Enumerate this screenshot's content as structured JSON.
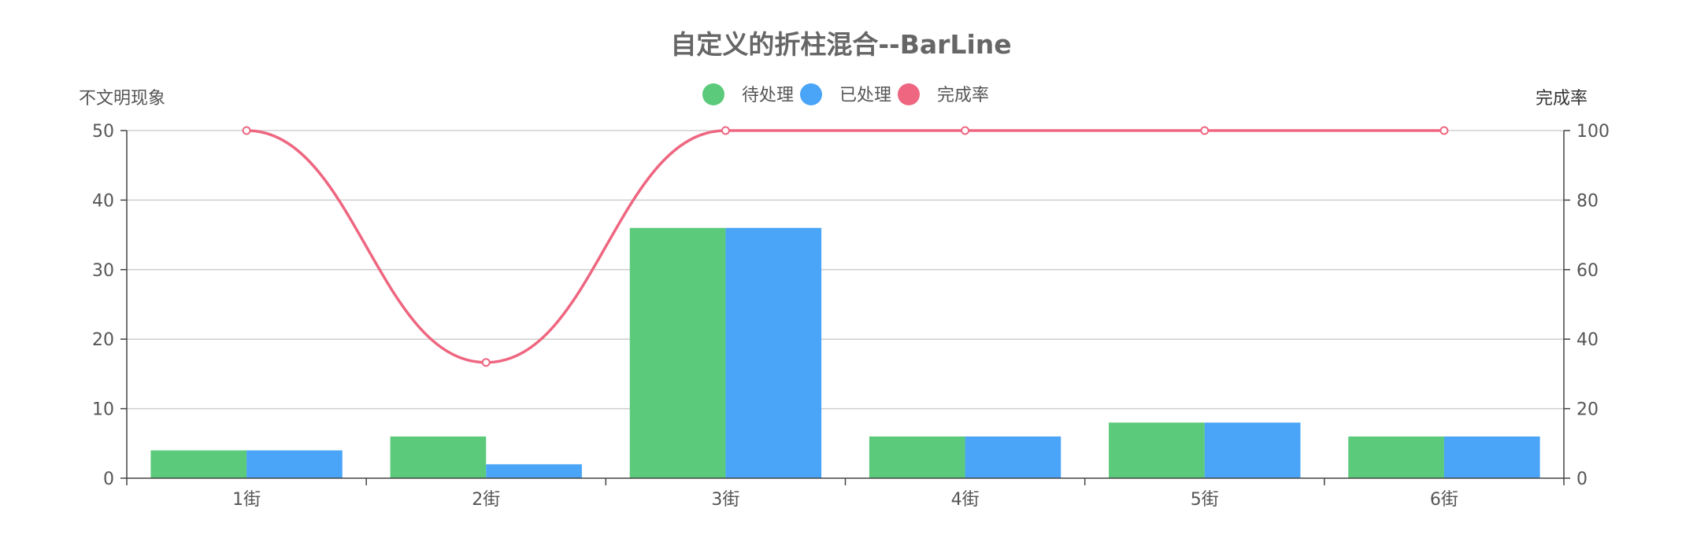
{
  "chart_data": {
    "type": "bar",
    "title": "自定义的折柱混合--BarLine",
    "categories": [
      "1街",
      "2街",
      "3街",
      "4街",
      "5街",
      "6街"
    ],
    "y_left": {
      "label": "不文明现象",
      "ylim": [
        0,
        50
      ],
      "ticks": [
        0,
        10,
        20,
        30,
        40,
        50
      ]
    },
    "y_right": {
      "label": "完成率",
      "ylim": [
        0,
        100
      ],
      "ticks": [
        0,
        20,
        40,
        60,
        80,
        100
      ]
    },
    "series": [
      {
        "name": "待处理",
        "type": "bar",
        "axis": "left",
        "color": "#5bca7a",
        "values": [
          4,
          6,
          36,
          6,
          8,
          6
        ]
      },
      {
        "name": "已处理",
        "type": "bar",
        "axis": "left",
        "color": "#4aa4f7",
        "values": [
          4,
          2,
          36,
          6,
          8,
          6
        ]
      },
      {
        "name": "完成率",
        "type": "line",
        "axis": "right",
        "color": "#ee6680",
        "smooth": true,
        "values": [
          100,
          33.3,
          100,
          100,
          100,
          100
        ]
      }
    ],
    "legend": "top-center",
    "grid": true,
    "colors": {
      "grid": "#cfcfcf",
      "axis": "#444444",
      "text": "#555555",
      "title": "#666666"
    }
  }
}
